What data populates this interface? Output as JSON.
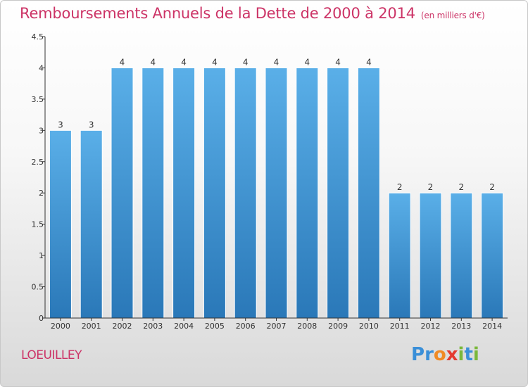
{
  "chart_data": {
    "type": "bar",
    "title": "Remboursements Annuels de la Dette de 2000 à 2014",
    "subtitle": "(en milliers d'€)",
    "categories": [
      "2000",
      "2001",
      "2002",
      "2003",
      "2004",
      "2005",
      "2006",
      "2007",
      "2008",
      "2009",
      "2010",
      "2011",
      "2012",
      "2013",
      "2014"
    ],
    "values": [
      3,
      3,
      4,
      4,
      4,
      4,
      4,
      4,
      4,
      4,
      4,
      2,
      2,
      2,
      2
    ],
    "value_labels": [
      "3",
      "3",
      "4",
      "4",
      "4",
      "4",
      "4",
      "4",
      "4",
      "4",
      "4",
      "2",
      "2",
      "2",
      "2"
    ],
    "y_ticks": [
      "0",
      "0.5",
      "1",
      "1.5",
      "2",
      "2.5",
      "3",
      "3.5",
      "4",
      "4.5"
    ],
    "y_tick_values": [
      0,
      0.5,
      1,
      1.5,
      2,
      2.5,
      3,
      3.5,
      4,
      4.5
    ],
    "ylim": [
      0,
      4.5
    ],
    "grid": false,
    "bar_color_top": "#5aafe8",
    "bar_color_bottom": "#2a78b8"
  },
  "commune": "LOEUILLEY",
  "logo": {
    "letters": [
      "P",
      "r",
      "o",
      "x",
      "i",
      "t",
      "i"
    ],
    "colors": [
      "#3a8fd8",
      "#3a8fd8",
      "#f08a24",
      "#e43a2f",
      "#7ab83a",
      "#3a8fd8",
      "#7ab83a"
    ]
  },
  "colors": {
    "title": "#cc3366",
    "axis": "#333333"
  }
}
